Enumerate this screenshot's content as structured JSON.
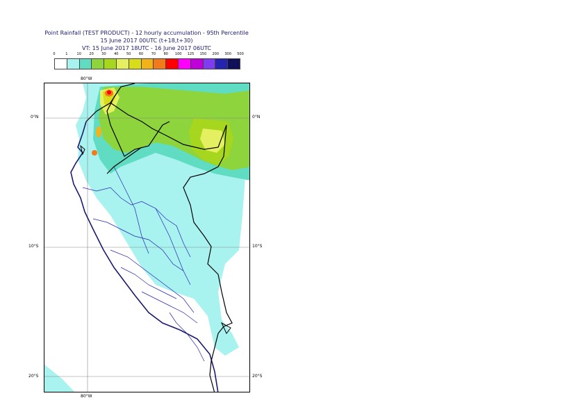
{
  "title": {
    "line1": "Point Rainfall (TEST PRODUCT) - 12 hourly accumulation - 95th Percentile",
    "line2": "15 June 2017 00UTC (t+18,t+30)",
    "line3": "VT: 15 June 2017 18UTC - 16 June 2017 06UTC"
  },
  "legend": {
    "labels": [
      "0",
      "1",
      "10",
      "20",
      "30",
      "40",
      "50",
      "60",
      "70",
      "80",
      "100",
      "125",
      "150",
      "200",
      "300",
      "500"
    ],
    "colors": [
      "#ffffff",
      "#a8f2ef",
      "#5fdcc2",
      "#8ed43c",
      "#a6d61e",
      "#e4f060",
      "#d8dc1a",
      "#f2b21a",
      "#f27a1a",
      "#ff0000",
      "#ff00ff",
      "#c000d8",
      "#7f3cf0",
      "#2424b0",
      "#10105a"
    ]
  },
  "map": {
    "lon_labels": {
      "top": "80°W",
      "bottom": "80°W"
    },
    "lat_labels": {
      "eq_left": "0°N",
      "eq_right": "0°N",
      "s10_left": "10°S",
      "s10_right": "10°S",
      "s20_left": "20°S",
      "s20_right": "20°S"
    }
  }
}
